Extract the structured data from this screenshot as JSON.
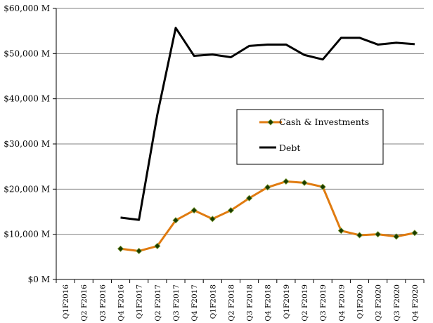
{
  "chart_data": {
    "type": "line",
    "categories": [
      "Q1F2016",
      "Q2 F2016",
      "Q3 F2016",
      "Q4 F2016",
      "Q1F2017",
      "Q2 F2017",
      "Q3 F2017",
      "Q4 F2017",
      "Q1F2018",
      "Q2 F2018",
      "Q3 F2018",
      "Q4 F2018",
      "Q1F2019",
      "Q2 F2019",
      "Q3 F2019",
      "Q4 F2019",
      "Q1F2020",
      "Q2 F2020",
      "Q3 F2020",
      "Q4 F2020"
    ],
    "ylim": [
      0,
      60000
    ],
    "yticks": [
      0,
      10000,
      20000,
      30000,
      40000,
      50000,
      60000
    ],
    "ytick_labels": [
      "$0 M",
      "$10,000 M",
      "$20,000 M",
      "$30,000 M",
      "$40,000 M",
      "$50,000 M",
      "$60,000 M"
    ],
    "grid": true,
    "legend_position": "center-right",
    "series": [
      {
        "name": "Cash & Investments",
        "color": "#E07B10",
        "marker": "diamond",
        "marker_color": "#1a3a00",
        "values": [
          null,
          null,
          null,
          6800,
          6300,
          7400,
          13100,
          15300,
          13400,
          15300,
          18000,
          20400,
          21700,
          21400,
          20500,
          10800,
          9800,
          10000,
          9500,
          10300
        ]
      },
      {
        "name": "Debt",
        "color": "#000000",
        "marker": "none",
        "values": [
          null,
          null,
          null,
          13700,
          13200,
          36500,
          55700,
          49500,
          49800,
          49200,
          51700,
          52000,
          52000,
          49700,
          48700,
          53500,
          53500,
          52000,
          52400,
          52100
        ]
      }
    ]
  }
}
